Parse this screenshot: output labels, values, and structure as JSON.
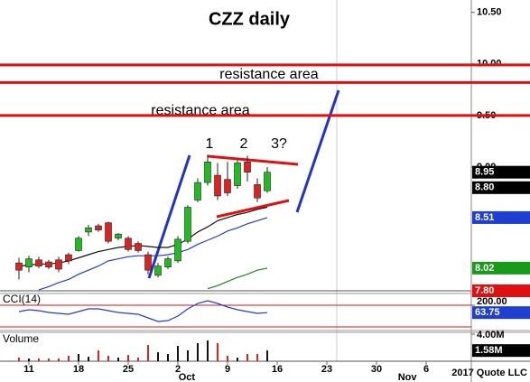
{
  "chart_data": {
    "type": "candlestick",
    "title": "CZZ daily",
    "annotations": [
      "resistance area",
      "resistance area",
      "1",
      "2",
      "3?"
    ],
    "x": [
      0,
      1,
      2,
      3,
      4,
      5,
      6,
      7,
      8,
      9,
      10,
      11,
      12,
      13,
      14,
      15,
      16,
      17,
      18,
      19,
      20,
      21,
      22,
      23,
      24,
      25
    ],
    "xlim": [
      -1.909,
      45.545
    ],
    "xticks": [
      {
        "value": 1,
        "label": "11"
      },
      {
        "value": 6,
        "label": "18"
      },
      {
        "value": 11,
        "label": "25"
      },
      {
        "value": 16,
        "label": "2"
      },
      {
        "value": 21,
        "label": "9"
      },
      {
        "value": 26,
        "label": "16"
      },
      {
        "value": 31,
        "label": "23"
      },
      {
        "value": 36,
        "label": "30"
      },
      {
        "value": 41,
        "label": "6"
      }
    ],
    "month_ticks": [
      {
        "value": 16.9,
        "label": "Oct"
      },
      {
        "value": 39.1,
        "label": "Nov"
      }
    ],
    "open": [
      8.07,
      8.03,
      8.1,
      8.08,
      8.1,
      8.15,
      8.19,
      8.37,
      8.43,
      8.46,
      8.31,
      8.31,
      8.26,
      8.15,
      7.95,
      8.03,
      8.09,
      8.28,
      8.68,
      8.85,
      8.92,
      8.88,
      8.82,
      9.05,
      8.83,
      8.77
    ],
    "high": [
      8.12,
      8.14,
      8.13,
      8.1,
      8.13,
      8.17,
      8.33,
      8.44,
      8.45,
      8.47,
      8.36,
      8.33,
      8.28,
      8.18,
      8.07,
      8.13,
      8.33,
      8.63,
      8.89,
      9.12,
      9.04,
      9.05,
      9.07,
      9.11,
      8.89,
      9.0
    ],
    "low": [
      7.91,
      7.98,
      8.02,
      8.01,
      7.98,
      8.06,
      8.18,
      8.33,
      8.37,
      8.26,
      8.29,
      8.18,
      8.17,
      7.96,
      7.93,
      8.01,
      8.07,
      8.26,
      8.66,
      8.82,
      8.68,
      8.72,
      8.79,
      8.86,
      8.66,
      8.75
    ],
    "close": [
      8.0,
      8.11,
      8.04,
      8.03,
      8.01,
      8.09,
      8.31,
      8.41,
      8.39,
      8.28,
      8.35,
      8.2,
      8.19,
      8.0,
      8.04,
      8.11,
      8.3,
      8.61,
      8.85,
      9.05,
      8.72,
      8.75,
      9.04,
      8.95,
      8.7,
      8.95
    ],
    "up_color": "#22bb22",
    "down_color": "#dd2222",
    "series": [
      {
        "color": "#111111",
        "values": [
          8.04,
          8.05,
          8.06,
          8.06,
          8.07,
          8.09,
          8.12,
          8.15,
          8.18,
          8.2,
          8.22,
          8.23,
          8.24,
          8.23,
          8.22,
          8.22,
          8.25,
          8.3,
          8.37,
          8.42,
          8.48,
          8.51,
          8.54,
          8.56,
          8.59,
          8.61
        ]
      },
      {
        "color": "#1f3fd0",
        "values": [
          null,
          null,
          7.81,
          7.84,
          7.88,
          7.91,
          7.96,
          8.0,
          8.04,
          8.09,
          8.11,
          8.13,
          8.14,
          8.14,
          8.14,
          8.15,
          8.17,
          8.2,
          8.25,
          8.29,
          8.33,
          8.38,
          8.41,
          8.45,
          8.48,
          8.51
        ]
      },
      {
        "color": "#1a8a1a",
        "values": [
          null,
          null,
          null,
          null,
          null,
          null,
          null,
          null,
          null,
          null,
          null,
          null,
          null,
          null,
          null,
          null,
          null,
          null,
          null,
          7.82,
          7.85,
          7.89,
          7.93,
          7.96,
          8.0,
          8.02
        ]
      }
    ],
    "ylim": [
      7.8,
      10.62
    ],
    "yticks": [
      {
        "value": 10.5,
        "label": "10.50"
      },
      {
        "value": 10,
        "label": "10.00"
      },
      {
        "value": 9.5,
        "label": "9.50"
      },
      {
        "value": 9,
        "label": "9.00"
      }
    ],
    "resistance_lines": [
      9.99,
      9.82,
      9.5
    ],
    "resistance_color": "#e01010",
    "price_markers": [
      {
        "value": 8.95,
        "label": "8.95",
        "color": "#000000"
      },
      {
        "value": 8.8,
        "label": "8.80",
        "color": "#000000"
      },
      {
        "value": 8.51,
        "label": "8.51",
        "color": "#1f3fd0"
      },
      {
        "value": 8.02,
        "label": "8.02",
        "color": "#1a9a1a"
      },
      {
        "value": 7.8,
        "label": "7.80",
        "color": "#e01010"
      }
    ],
    "cci": {
      "label": "CCI(14)",
      "color": "#1f3fd0",
      "values": [
        83,
        117,
        100,
        67,
        50,
        33,
        83,
        133,
        133,
        100,
        67,
        50,
        33,
        -33,
        -100,
        -83,
        0,
        133,
        233,
        283,
        233,
        167,
        117,
        83,
        50,
        63.75
      ],
      "ylim": [
        -267,
        417
      ],
      "yticks": [
        {
          "value": 200,
          "label": "200.00"
        }
      ],
      "levels": [
        200,
        -200
      ]
    },
    "volume": {
      "label": "Volume",
      "values": [
        530000,
        400000,
        400000,
        400000,
        400000,
        800000,
        1070000,
        670000,
        1600000,
        800000,
        530000,
        930000,
        530000,
        2400000,
        1330000,
        1070000,
        2270000,
        1600000,
        2670000,
        3070000,
        2670000,
        800000,
        530000,
        1070000,
        1070000,
        1580000
      ],
      "value_labels": [
        null,
        null,
        null,
        null,
        null,
        null,
        null,
        null,
        null,
        null,
        null,
        null,
        null,
        null,
        null,
        null,
        null,
        null,
        null,
        null,
        null,
        null,
        null,
        null,
        null,
        "1.58M"
      ],
      "ylim": [
        0,
        4270000
      ],
      "yticks": [
        {
          "value": 4000000,
          "label": "4.00M"
        }
      ]
    },
    "credit": "2017 Quote LLC"
  }
}
